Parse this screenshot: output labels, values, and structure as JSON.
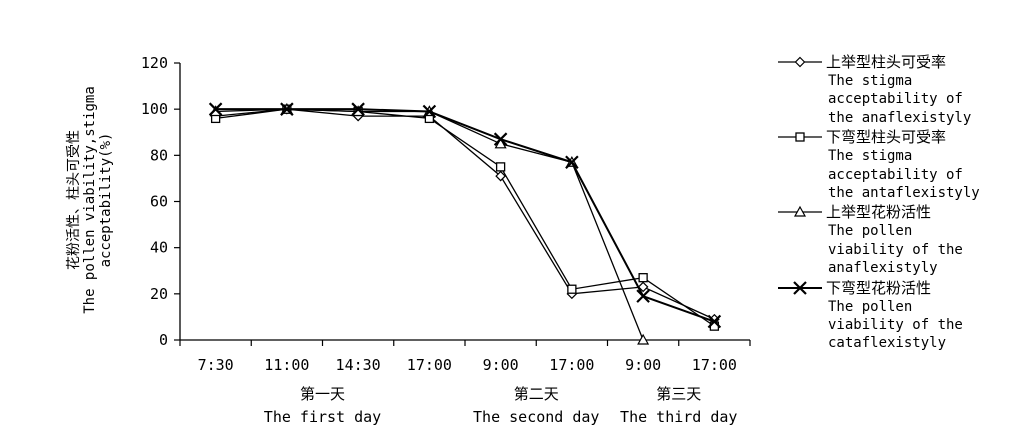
{
  "chart_data": {
    "type": "line",
    "x": [
      "7:30",
      "11:00",
      "14:30",
      "17:00",
      "9:00",
      "17:00",
      "9:00",
      "17:00"
    ],
    "day_groups": [
      {
        "cn": "第一天",
        "en": "The first day",
        "start": 0,
        "end": 3
      },
      {
        "cn": "第二天",
        "en": "The second day",
        "start": 4,
        "end": 5
      },
      {
        "cn": "第三天",
        "en": "The third day",
        "start": 6,
        "end": 7
      }
    ],
    "ylabel": [
      "花粉活性、柱头可受性",
      "The pollen viability,stigma",
      "acceptability(%)"
    ],
    "ylim": [
      0,
      120
    ],
    "yticks": [
      0,
      20,
      40,
      60,
      80,
      100,
      120
    ],
    "series": [
      {
        "name": "上举型柱头可受率",
        "name_en": "The stigma\nacceptability of\nthe anaflexistyly",
        "marker": "diamond",
        "values": [
          97,
          100,
          97,
          97,
          71,
          20,
          23,
          9
        ]
      },
      {
        "name": "下弯型柱头可受率",
        "name_en": "The stigma\nacceptability of\nthe antaflexistyly",
        "marker": "square",
        "values": [
          96,
          100,
          99,
          96,
          75,
          22,
          27,
          6
        ]
      },
      {
        "name": "上举型花粉活性",
        "name_en": "The pollen\nviability of the\nanaflexistyly",
        "marker": "triangle",
        "values": [
          99,
          100,
          99,
          99,
          85,
          77,
          0,
          null
        ]
      },
      {
        "name": "下弯型花粉活性",
        "name_en": "The pollen\nviability of the\ncataflexistyly",
        "marker": "x",
        "values": [
          100,
          100,
          100,
          99,
          87,
          77,
          19,
          8
        ]
      }
    ],
    "grid": false,
    "legend_position": "right"
  }
}
